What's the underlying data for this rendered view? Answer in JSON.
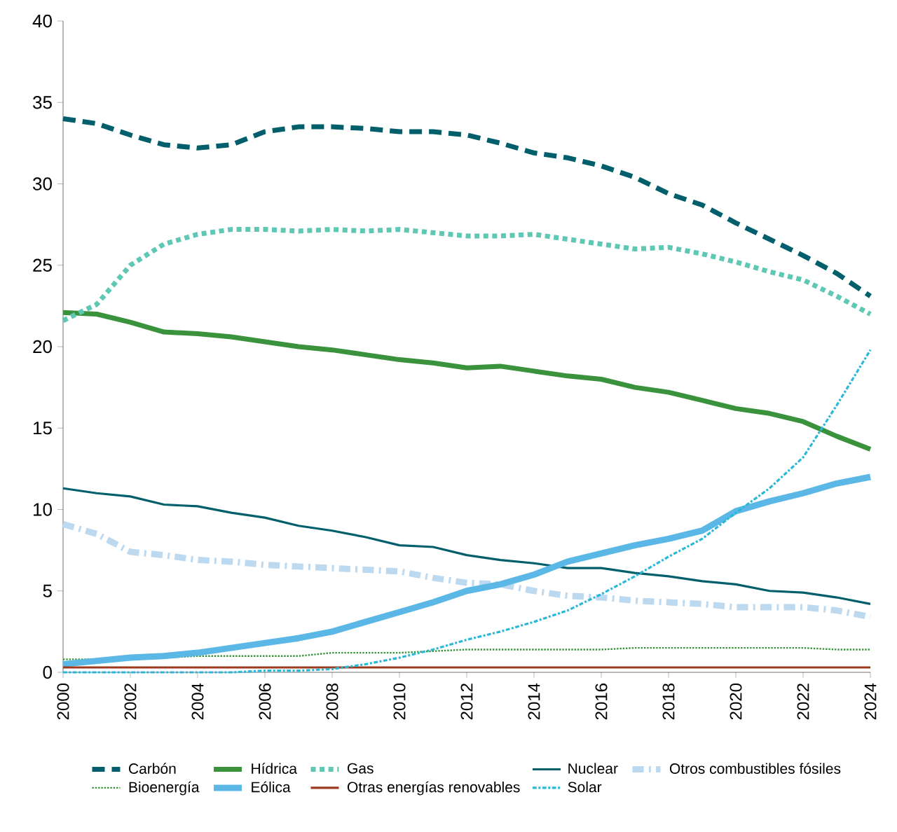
{
  "chart_data": {
    "type": "line",
    "x": [
      2000,
      2001,
      2002,
      2003,
      2004,
      2005,
      2006,
      2007,
      2008,
      2009,
      2010,
      2011,
      2012,
      2013,
      2014,
      2015,
      2016,
      2017,
      2018,
      2019,
      2020,
      2021,
      2022,
      2023,
      2024
    ],
    "xlim": [
      2000,
      2024
    ],
    "xticks": [
      2000,
      2002,
      2004,
      2006,
      2008,
      2010,
      2012,
      2014,
      2016,
      2018,
      2020,
      2022,
      2024
    ],
    "ylim": [
      0,
      40
    ],
    "yticks": [
      0,
      5,
      10,
      15,
      20,
      25,
      30,
      35,
      40
    ],
    "grid": false,
    "legend": "bottom",
    "series": [
      {
        "name": "Carbón",
        "color": "#005f6b",
        "line_style": "dashed",
        "values": [
          34.0,
          33.7,
          33.0,
          32.4,
          32.2,
          32.4,
          33.2,
          33.5,
          33.5,
          33.4,
          33.2,
          33.2,
          33.0,
          32.5,
          31.9,
          31.6,
          31.1,
          30.4,
          29.4,
          28.7,
          27.6,
          26.6,
          25.6,
          24.5,
          23.1
        ]
      },
      {
        "name": "Hídrica",
        "color": "#3a923c",
        "line_style": "solid",
        "values": [
          22.1,
          22.0,
          21.5,
          20.9,
          20.8,
          20.6,
          20.3,
          20.0,
          19.8,
          19.5,
          19.2,
          19.0,
          18.7,
          18.8,
          18.5,
          18.2,
          18.0,
          17.5,
          17.2,
          16.7,
          16.2,
          15.9,
          15.4,
          14.5,
          13.7
        ]
      },
      {
        "name": "Gas",
        "color": "#5ec8b4",
        "line_style": "dotted",
        "values": [
          21.6,
          22.6,
          25.0,
          26.3,
          26.9,
          27.2,
          27.2,
          27.1,
          27.2,
          27.1,
          27.2,
          27.0,
          26.8,
          26.8,
          26.9,
          26.6,
          26.3,
          26.0,
          26.1,
          25.7,
          25.2,
          24.6,
          24.1,
          23.1,
          22.0
        ]
      },
      {
        "name": "Nuclear",
        "color": "#005f6b",
        "line_style": "solid",
        "values": [
          11.3,
          11.0,
          10.8,
          10.3,
          10.2,
          9.8,
          9.5,
          9.0,
          8.7,
          8.3,
          7.8,
          7.7,
          7.2,
          6.9,
          6.7,
          6.4,
          6.4,
          6.1,
          5.9,
          5.6,
          5.4,
          5.0,
          4.9,
          4.6,
          4.2
        ]
      },
      {
        "name": "Otros combustibles fósiles",
        "color": "#bdd9f0",
        "line_style": "dashdot",
        "values": [
          9.1,
          8.5,
          7.4,
          7.2,
          6.9,
          6.8,
          6.6,
          6.5,
          6.4,
          6.3,
          6.2,
          5.8,
          5.5,
          5.4,
          5.0,
          4.7,
          4.6,
          4.4,
          4.3,
          4.2,
          4.0,
          4.0,
          4.0,
          3.8,
          3.4
        ]
      },
      {
        "name": "Bioenergía",
        "color": "#3a923c",
        "line_style": "dotted",
        "values": [
          0.8,
          0.8,
          0.8,
          0.9,
          1.0,
          1.0,
          1.0,
          1.0,
          1.2,
          1.2,
          1.2,
          1.3,
          1.4,
          1.4,
          1.4,
          1.4,
          1.4,
          1.5,
          1.5,
          1.5,
          1.5,
          1.5,
          1.5,
          1.4,
          1.4
        ]
      },
      {
        "name": "Eólica",
        "color": "#5ab7e6",
        "line_style": "solid",
        "values": [
          0.5,
          0.7,
          0.9,
          1.0,
          1.2,
          1.5,
          1.8,
          2.1,
          2.5,
          3.1,
          3.7,
          4.3,
          5.0,
          5.4,
          6.0,
          6.8,
          7.3,
          7.8,
          8.2,
          8.7,
          9.9,
          10.5,
          11.0,
          11.6,
          12.0
        ]
      },
      {
        "name": "Otras energías renovables",
        "color": "#9b3a1c",
        "line_style": "solid",
        "values": [
          0.3,
          0.3,
          0.3,
          0.3,
          0.3,
          0.3,
          0.3,
          0.3,
          0.3,
          0.3,
          0.3,
          0.3,
          0.3,
          0.3,
          0.3,
          0.3,
          0.3,
          0.3,
          0.3,
          0.3,
          0.3,
          0.3,
          0.3,
          0.3,
          0.3
        ]
      },
      {
        "name": "Solar",
        "color": "#2bb8d8",
        "line_style": "dashdot",
        "values": [
          0.0,
          0.0,
          0.0,
          0.0,
          0.0,
          0.0,
          0.1,
          0.1,
          0.2,
          0.5,
          0.9,
          1.4,
          2.0,
          2.5,
          3.1,
          3.8,
          4.8,
          5.9,
          7.1,
          8.2,
          9.8,
          11.3,
          13.2,
          16.4,
          19.8
        ]
      }
    ]
  }
}
